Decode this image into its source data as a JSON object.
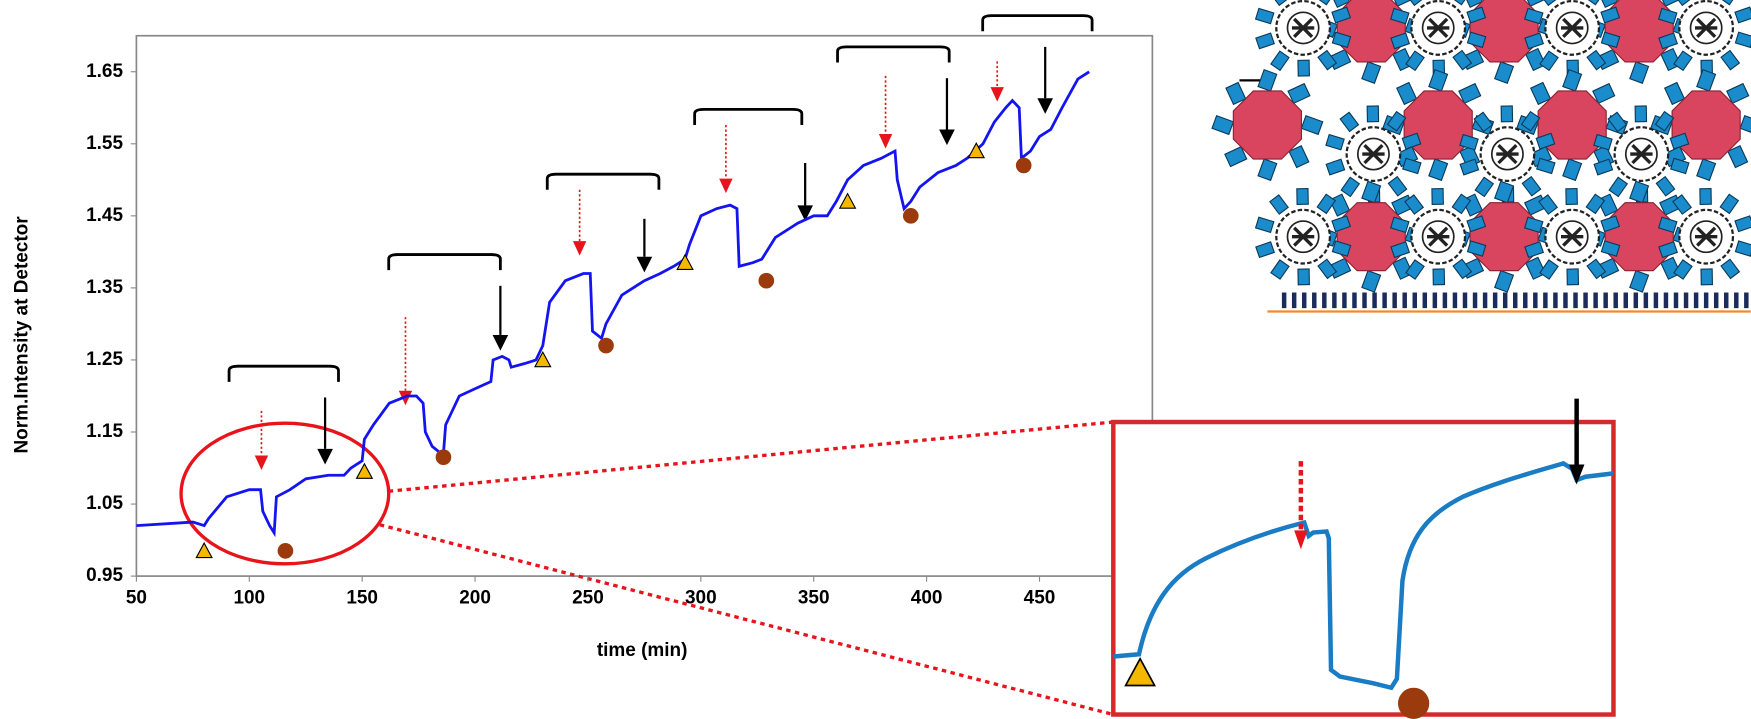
{
  "chart_data": {
    "type": "line",
    "xlabel": "time (min)",
    "ylabel": "Norm.Intensity at Detector",
    "xlim": [
      50,
      500
    ],
    "ylim": [
      0.95,
      1.7
    ],
    "xticks": [
      50,
      100,
      150,
      200,
      250,
      300,
      350,
      400,
      450
    ],
    "yticks": [
      0.95,
      1.05,
      1.15,
      1.25,
      1.35,
      1.45,
      1.55,
      1.65
    ],
    "color": "#1414f0",
    "x": [
      50,
      75,
      80,
      82,
      90,
      100,
      105,
      106,
      109,
      111,
      112,
      118,
      125,
      135,
      142,
      145,
      150,
      151,
      155,
      162,
      170,
      174,
      177,
      178,
      181,
      185,
      186,
      187,
      193,
      200,
      207,
      208,
      212,
      215,
      216,
      222,
      227,
      230,
      233,
      240,
      248,
      251,
      252,
      256,
      258,
      265,
      275,
      282,
      288,
      293,
      295,
      300,
      307,
      313,
      316,
      317,
      323,
      327,
      333,
      343,
      350,
      356,
      360,
      365,
      372,
      380,
      386,
      387,
      390,
      393,
      397,
      405,
      413,
      418,
      425,
      430,
      435,
      438,
      441,
      442,
      446,
      450,
      455,
      460,
      467,
      472
    ],
    "values": [
      1.02,
      1.025,
      1.02,
      1.03,
      1.06,
      1.07,
      1.07,
      1.04,
      1.02,
      1.01,
      1.06,
      1.07,
      1.085,
      1.09,
      1.09,
      1.1,
      1.11,
      1.14,
      1.16,
      1.19,
      1.2,
      1.2,
      1.19,
      1.15,
      1.13,
      1.12,
      1.12,
      1.16,
      1.2,
      1.21,
      1.22,
      1.25,
      1.255,
      1.25,
      1.24,
      1.245,
      1.25,
      1.27,
      1.33,
      1.36,
      1.37,
      1.37,
      1.29,
      1.28,
      1.3,
      1.34,
      1.36,
      1.37,
      1.38,
      1.39,
      1.41,
      1.45,
      1.46,
      1.465,
      1.46,
      1.38,
      1.385,
      1.39,
      1.42,
      1.44,
      1.45,
      1.45,
      1.47,
      1.5,
      1.52,
      1.53,
      1.54,
      1.5,
      1.46,
      1.47,
      1.49,
      1.51,
      1.52,
      1.53,
      1.55,
      1.58,
      1.6,
      1.61,
      1.6,
      1.53,
      1.54,
      1.56,
      1.57,
      1.6,
      1.64,
      1.65
    ],
    "triangles": {
      "color": "#f5b800",
      "x": [
        80,
        151,
        230,
        293,
        365,
        422
      ],
      "values": [
        0.985,
        1.095,
        1.25,
        1.385,
        1.47,
        1.54
      ]
    },
    "circles": {
      "color": "#9b3a0c",
      "x": [
        116,
        186,
        258,
        329,
        393,
        443
      ],
      "values": [
        0.985,
        1.115,
        1.27,
        1.36,
        1.45,
        1.52
      ]
    }
  }
}
